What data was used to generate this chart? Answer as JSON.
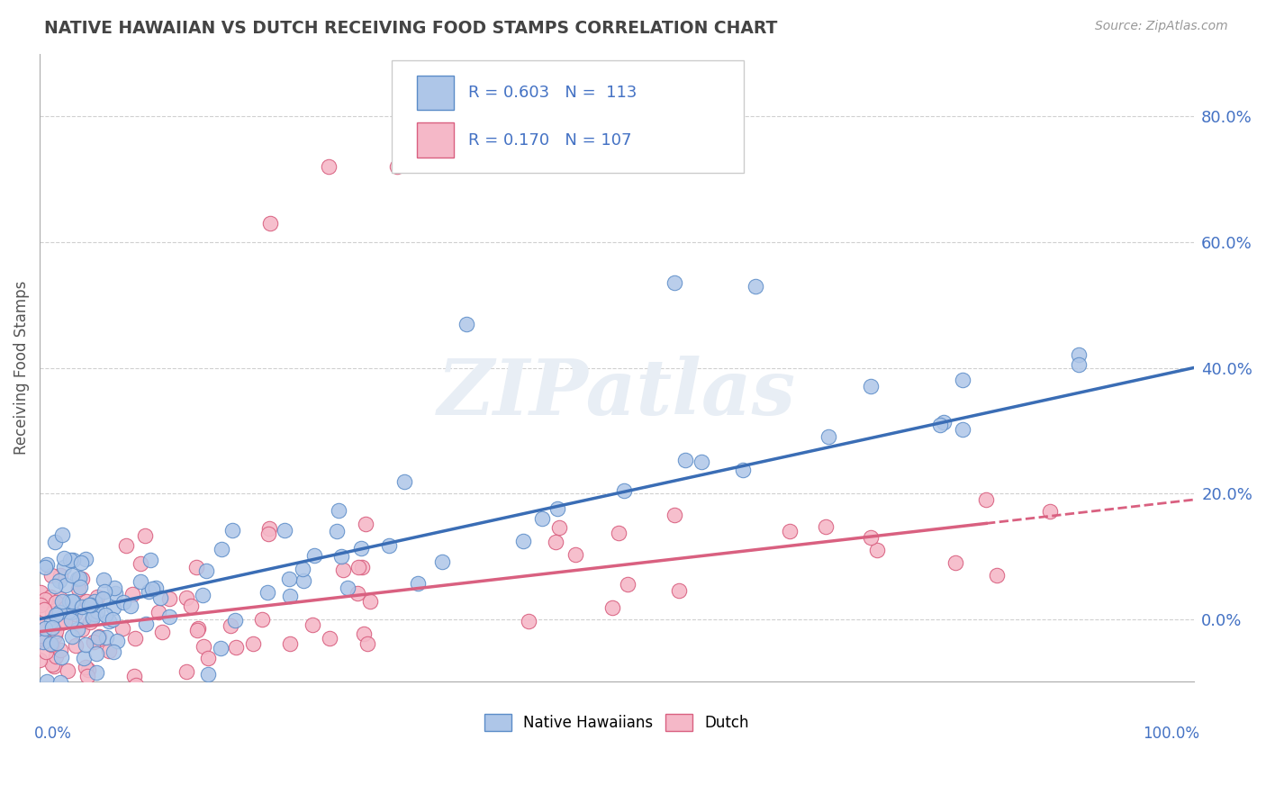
{
  "title": "NATIVE HAWAIIAN VS DUTCH RECEIVING FOOD STAMPS CORRELATION CHART",
  "source": "Source: ZipAtlas.com",
  "ylabel": "Receiving Food Stamps",
  "ytick_vals": [
    0.0,
    0.2,
    0.4,
    0.6,
    0.8
  ],
  "ytick_labels": [
    "0.0%",
    "20.0%",
    "40.0%",
    "60.0%",
    "80.0%"
  ],
  "ylim": [
    -0.1,
    0.9
  ],
  "xlim": [
    0.0,
    1.0
  ],
  "blue_fill": "#aec6e8",
  "blue_edge": "#5b8cc8",
  "blue_line": "#3a6db5",
  "pink_fill": "#f5b8c8",
  "pink_edge": "#d96080",
  "pink_line": "#d96080",
  "title_color": "#444444",
  "stat_color": "#4472c4",
  "grid_color": "#d0d0d0",
  "bg_color": "#ffffff",
  "watermark": "ZIPatlas",
  "watermark_color": "#e8eef5",
  "legend_label1": "Native Hawaiians",
  "legend_label2": "Dutch",
  "legend_r1": "R = 0.603",
  "legend_n1": "N =  113",
  "legend_r2": "R = 0.170",
  "legend_n2": "N = 107",
  "hw_intercept": 0.0,
  "hw_slope": 0.4,
  "du_intercept": -0.02,
  "du_slope": 0.21
}
